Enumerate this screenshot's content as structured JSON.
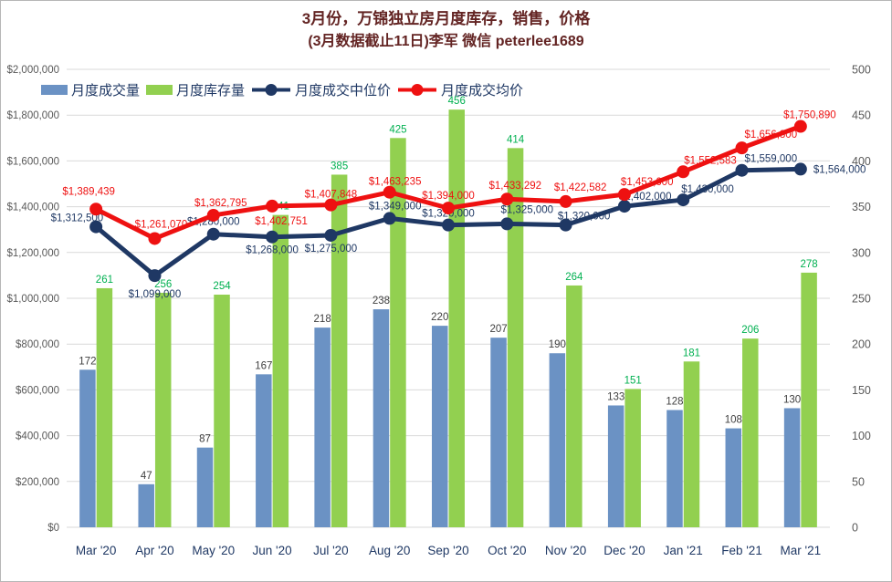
{
  "title": {
    "line1": "3月份，万锦独立房月度库存，销售，价格",
    "line2": "(3月数据截止11日)李军 微信 peterlee1689"
  },
  "legend": [
    {
      "label": "月度成交量",
      "swatch": "bar",
      "color": "#6b92c4"
    },
    {
      "label": "月度库存量",
      "swatch": "bar",
      "color": "#92d050"
    },
    {
      "label": "月度成交中位价",
      "swatch": "line",
      "color": "#1f3864"
    },
    {
      "label": "月度成交均价",
      "swatch": "line",
      "color": "#ee1111"
    }
  ],
  "colors": {
    "grid": "#d9d9d9",
    "axis_text": "#595959",
    "x_label_text": "#1f3864",
    "volume_bar": "#6b92c4",
    "volume_label": "#404040",
    "inventory_bar": "#92d050",
    "inventory_label": "#00b050",
    "median_line": "#1f3864",
    "average_line": "#ee1111",
    "title_text": "#632423"
  },
  "chart_data": {
    "type": "combo",
    "categories": [
      "Mar '20",
      "Apr '20",
      "May '20",
      "Jun '20",
      "Jul '20",
      "Aug '20",
      "Sep '20",
      "Oct '20",
      "Nov '20",
      "Dec '20",
      "Jan '21",
      "Feb '21",
      "Mar '21"
    ],
    "series": [
      {
        "name": "月度成交量",
        "type": "bar",
        "axis": "right",
        "color": "#6b92c4",
        "label_color": "#404040",
        "values": [
          172,
          47,
          87,
          167,
          218,
          238,
          220,
          207,
          190,
          133,
          128,
          108,
          130
        ]
      },
      {
        "name": "月度库存量",
        "type": "bar",
        "axis": "right",
        "color": "#92d050",
        "label_color": "#00b050",
        "values": [
          261,
          256,
          254,
          341,
          385,
          425,
          456,
          414,
          264,
          151,
          181,
          206,
          278
        ]
      },
      {
        "name": "月度成交中位价",
        "type": "line",
        "axis": "left",
        "color": "#1f3864",
        "values": [
          1312500,
          1099000,
          1280000,
          1268000,
          1275000,
          1349000,
          1320000,
          1325000,
          1320000,
          1402000,
          1430000,
          1559000,
          1564000
        ]
      },
      {
        "name": "月度成交均价",
        "type": "line",
        "axis": "left",
        "color": "#ee1111",
        "values": [
          1389439,
          1261070,
          1362795,
          1402751,
          1407848,
          1463235,
          1394000,
          1433292,
          1422582,
          1453600,
          1552583,
          1656800,
          1750890
        ]
      }
    ],
    "left_axis": {
      "min": 0,
      "max": 2000000,
      "step": 200000,
      "format": "$#,##0"
    },
    "right_axis": {
      "min": 0,
      "max": 500,
      "step": 50
    },
    "grid": true,
    "legend_position": "top-left"
  }
}
